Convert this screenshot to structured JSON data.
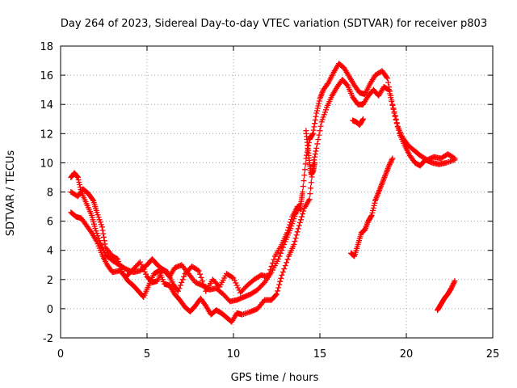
{
  "chart_data": {
    "type": "scatter",
    "title": "Day 264 of 2023, Sidereal Day-to-day VTEC variation (SDTVAR) for receiver p803",
    "xlabel": "GPS time / hours",
    "ylabel": "SDTVAR / TECUs",
    "xlim": [
      0,
      25
    ],
    "ylim": [
      -2,
      18
    ],
    "xticks": [
      0,
      5,
      10,
      15,
      20,
      25
    ],
    "yticks": [
      -2,
      0,
      2,
      4,
      6,
      8,
      10,
      12,
      14,
      16,
      18
    ],
    "grid": true,
    "marker": "+",
    "color": "#ff0000",
    "series": [
      {
        "name": "trace-a",
        "points": [
          [
            0.6,
            9.0
          ],
          [
            0.8,
            9.3
          ],
          [
            1.0,
            9.0
          ],
          [
            1.2,
            8.0
          ],
          [
            1.5,
            7.2
          ],
          [
            1.8,
            6.4
          ],
          [
            2.0,
            5.5
          ],
          [
            2.3,
            4.5
          ],
          [
            2.6,
            3.7
          ],
          [
            3.0,
            3.3
          ],
          [
            3.4,
            3.0
          ],
          [
            3.8,
            2.7
          ],
          [
            4.2,
            2.5
          ],
          [
            4.6,
            2.6
          ],
          [
            5.0,
            3.0
          ],
          [
            5.3,
            3.4
          ],
          [
            5.6,
            3.0
          ],
          [
            6.0,
            2.6
          ],
          [
            6.3,
            2.2
          ],
          [
            6.6,
            2.8
          ],
          [
            7.0,
            3.0
          ],
          [
            7.4,
            2.4
          ],
          [
            7.8,
            1.8
          ],
          [
            8.2,
            1.6
          ],
          [
            8.6,
            1.3
          ],
          [
            9.0,
            1.4
          ],
          [
            9.4,
            1.0
          ],
          [
            9.8,
            0.5
          ],
          [
            10.2,
            0.6
          ],
          [
            10.6,
            0.8
          ],
          [
            11.0,
            1.0
          ],
          [
            11.4,
            1.3
          ],
          [
            11.8,
            1.8
          ],
          [
            12.2,
            2.5
          ],
          [
            12.6,
            3.4
          ],
          [
            13.0,
            4.6
          ],
          [
            13.3,
            5.5
          ],
          [
            13.6,
            6.5
          ],
          [
            13.9,
            7.2
          ],
          [
            14.0,
            8.0
          ],
          [
            14.2,
            10.3
          ],
          [
            14.4,
            11.6
          ],
          [
            14.6,
            12.0
          ],
          [
            14.8,
            13.4
          ],
          [
            15.0,
            14.4
          ],
          [
            15.2,
            15.0
          ],
          [
            15.5,
            15.5
          ],
          [
            15.8,
            16.2
          ],
          [
            16.1,
            16.8
          ],
          [
            16.4,
            16.5
          ],
          [
            16.7,
            15.9
          ],
          [
            17.0,
            15.3
          ],
          [
            17.3,
            14.8
          ],
          [
            17.6,
            14.7
          ],
          [
            17.9,
            15.4
          ],
          [
            18.2,
            16.0
          ],
          [
            18.6,
            16.3
          ],
          [
            18.9,
            15.8
          ],
          [
            19.2,
            14.0
          ],
          [
            19.5,
            12.5
          ],
          [
            19.8,
            11.7
          ],
          [
            20.1,
            11.2
          ],
          [
            20.5,
            10.8
          ],
          [
            20.8,
            10.5
          ],
          [
            21.2,
            10.2
          ],
          [
            21.6,
            10.4
          ],
          [
            22.0,
            10.3
          ],
          [
            22.4,
            10.6
          ],
          [
            22.8,
            10.3
          ]
        ]
      },
      {
        "name": "trace-b",
        "points": [
          [
            0.6,
            8.0
          ],
          [
            1.0,
            7.7
          ],
          [
            1.3,
            8.2
          ],
          [
            1.6,
            7.9
          ],
          [
            1.9,
            7.4
          ],
          [
            2.1,
            6.6
          ],
          [
            2.4,
            5.6
          ],
          [
            2.6,
            4.2
          ],
          [
            3.0,
            3.6
          ],
          [
            3.3,
            3.4
          ],
          [
            3.6,
            2.4
          ],
          [
            3.9,
            1.9
          ],
          [
            4.2,
            1.6
          ],
          [
            4.5,
            1.2
          ],
          [
            4.8,
            0.8
          ],
          [
            5.1,
            1.6
          ],
          [
            5.4,
            2.4
          ],
          [
            5.7,
            2.6
          ],
          [
            6.0,
            1.7
          ],
          [
            6.3,
            1.6
          ],
          [
            6.6,
            1.0
          ],
          [
            6.9,
            0.6
          ],
          [
            7.2,
            0.1
          ],
          [
            7.5,
            -0.2
          ],
          [
            7.8,
            0.2
          ],
          [
            8.1,
            0.7
          ],
          [
            8.4,
            0.2
          ],
          [
            8.7,
            -0.4
          ],
          [
            9.0,
            -0.1
          ],
          [
            9.3,
            -0.3
          ],
          [
            9.6,
            -0.6
          ],
          [
            9.9,
            -0.9
          ],
          [
            10.2,
            -0.3
          ],
          [
            10.5,
            -0.4
          ],
          [
            11.0,
            -0.2
          ],
          [
            11.4,
            0.0
          ],
          [
            11.8,
            0.6
          ],
          [
            12.2,
            0.6
          ],
          [
            12.5,
            1.0
          ],
          [
            12.8,
            2.3
          ],
          [
            13.2,
            3.6
          ],
          [
            13.5,
            4.4
          ],
          [
            13.8,
            5.7
          ],
          [
            14.1,
            6.9
          ],
          [
            14.4,
            7.5
          ],
          [
            14.6,
            9.8
          ],
          [
            14.8,
            11.0
          ],
          [
            15.1,
            12.8
          ],
          [
            15.4,
            13.8
          ],
          [
            15.7,
            14.6
          ],
          [
            16.0,
            15.2
          ],
          [
            16.3,
            15.7
          ],
          [
            16.6,
            15.3
          ],
          [
            16.9,
            14.5
          ],
          [
            17.2,
            14.0
          ],
          [
            17.5,
            14.0
          ],
          [
            17.8,
            14.6
          ],
          [
            18.1,
            15.0
          ],
          [
            18.4,
            14.6
          ],
          [
            18.7,
            15.2
          ],
          [
            19.0,
            15.0
          ],
          [
            19.3,
            13.4
          ],
          [
            19.6,
            12.0
          ],
          [
            19.9,
            11.2
          ],
          [
            20.2,
            10.5
          ],
          [
            20.5,
            10.0
          ],
          [
            20.8,
            9.8
          ],
          [
            21.1,
            10.2
          ],
          [
            21.5,
            10.0
          ],
          [
            21.9,
            9.9
          ],
          [
            22.3,
            10.0
          ],
          [
            22.8,
            10.2
          ]
        ]
      },
      {
        "name": "trace-c",
        "points": [
          [
            0.6,
            6.6
          ],
          [
            0.9,
            6.3
          ],
          [
            1.2,
            6.2
          ],
          [
            1.5,
            5.7
          ],
          [
            1.8,
            5.2
          ],
          [
            2.1,
            4.6
          ],
          [
            2.4,
            3.7
          ],
          [
            2.7,
            3.0
          ],
          [
            3.0,
            2.5
          ],
          [
            3.4,
            2.6
          ],
          [
            3.8,
            2.2
          ],
          [
            4.2,
            2.7
          ],
          [
            4.6,
            3.2
          ],
          [
            5.0,
            2.2
          ],
          [
            5.3,
            1.8
          ],
          [
            5.6,
            1.9
          ],
          [
            5.9,
            2.7
          ],
          [
            6.2,
            2.5
          ],
          [
            6.5,
            1.7
          ],
          [
            6.8,
            1.2
          ],
          [
            7.2,
            2.4
          ],
          [
            7.6,
            2.9
          ],
          [
            8.0,
            2.6
          ],
          [
            8.4,
            1.2
          ],
          [
            8.8,
            2.0
          ],
          [
            9.2,
            1.5
          ],
          [
            9.6,
            2.4
          ],
          [
            10.0,
            2.1
          ],
          [
            10.4,
            1.1
          ],
          [
            10.8,
            1.6
          ],
          [
            11.2,
            2.0
          ],
          [
            11.6,
            2.3
          ],
          [
            12.0,
            2.2
          ],
          [
            12.4,
            3.6
          ],
          [
            12.8,
            4.4
          ],
          [
            13.1,
            5.2
          ],
          [
            13.4,
            6.3
          ],
          [
            13.7,
            7.0
          ],
          [
            13.9,
            6.8
          ]
        ]
      },
      {
        "name": "trace-d",
        "points": [
          [
            16.8,
            3.8
          ],
          [
            17.0,
            3.6
          ],
          [
            17.2,
            4.4
          ],
          [
            17.4,
            5.2
          ],
          [
            17.6,
            5.4
          ],
          [
            17.8,
            6.0
          ],
          [
            18.0,
            6.4
          ],
          [
            18.2,
            7.4
          ],
          [
            18.4,
            8.0
          ],
          [
            18.6,
            8.6
          ],
          [
            18.8,
            9.2
          ],
          [
            19.0,
            9.8
          ],
          [
            19.2,
            10.3
          ]
        ]
      },
      {
        "name": "trace-e",
        "points": [
          [
            21.8,
            -0.1
          ],
          [
            22.0,
            0.3
          ],
          [
            22.2,
            0.7
          ],
          [
            22.4,
            1.0
          ],
          [
            22.6,
            1.4
          ],
          [
            22.8,
            1.9
          ]
        ]
      },
      {
        "name": "trace-f",
        "points": [
          [
            14.2,
            12.2
          ],
          [
            14.3,
            11.0
          ],
          [
            14.4,
            10.0
          ],
          [
            14.5,
            9.2
          ],
          [
            14.6,
            9.4
          ],
          [
            14.7,
            10.0
          ]
        ]
      },
      {
        "name": "trace-g",
        "points": [
          [
            16.9,
            12.9
          ],
          [
            17.1,
            12.8
          ],
          [
            17.3,
            12.6
          ],
          [
            17.5,
            13.0
          ]
        ]
      }
    ]
  }
}
